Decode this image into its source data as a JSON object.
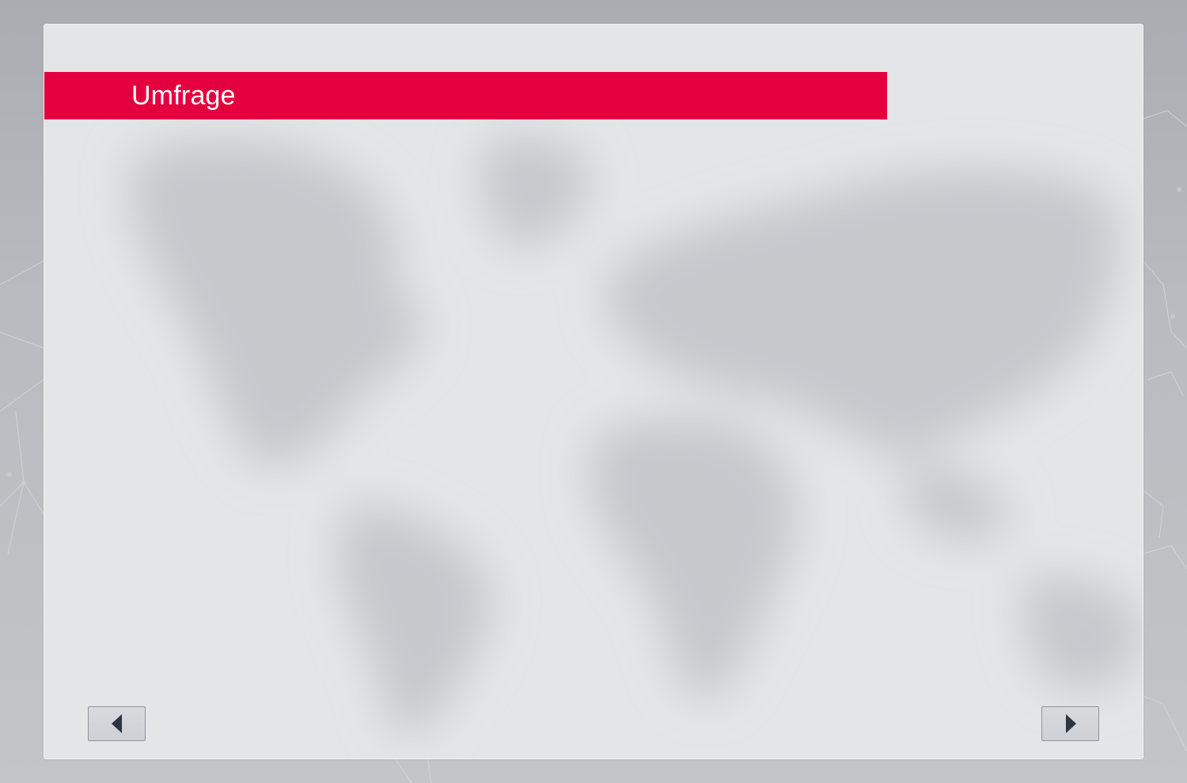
{
  "header": {
    "title": "Umfrage"
  },
  "navigation": {
    "prev_icon": "triangle-left-icon",
    "next_icon": "triangle-right-icon"
  },
  "colors": {
    "accent": "#e4003f",
    "panel": "#e4e5e7",
    "button_icon": "#2b3642"
  }
}
